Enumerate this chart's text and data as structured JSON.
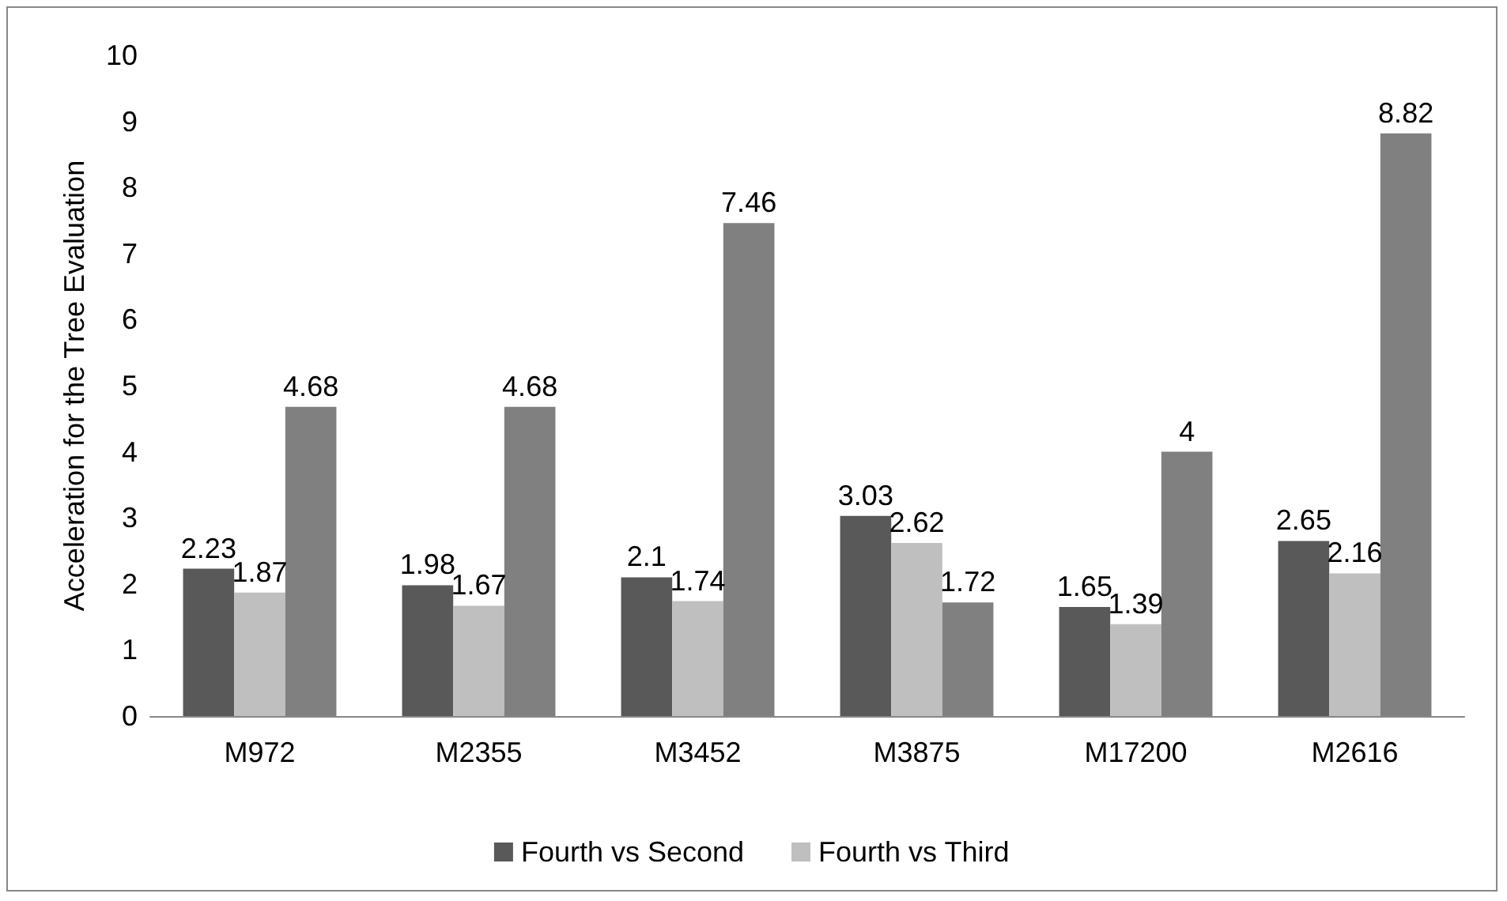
{
  "chart_data": {
    "type": "bar",
    "ylabel": "Acceleration for the Tree Evaluation",
    "categories": [
      "M972",
      "M2355",
      "M3452",
      "M3875",
      "M17200",
      "M2616"
    ],
    "series": [
      {
        "name": "Fourth vs Second",
        "color": "#595959",
        "values": [
          2.23,
          1.98,
          2.1,
          3.03,
          1.65,
          2.65
        ]
      },
      {
        "name": "Fourth vs Third",
        "color": "#bfbfbf",
        "values": [
          1.87,
          1.67,
          1.74,
          2.62,
          1.39,
          2.16
        ]
      },
      {
        "color": "#808080",
        "values": [
          4.68,
          4.68,
          7.46,
          1.72,
          4,
          8.82
        ]
      }
    ],
    "ylim": [
      0,
      10
    ],
    "yticks": [
      0,
      1,
      2,
      3,
      4,
      5,
      6,
      7,
      8,
      9,
      10
    ],
    "data_labels": true,
    "grid": false,
    "legend": "bottom"
  }
}
